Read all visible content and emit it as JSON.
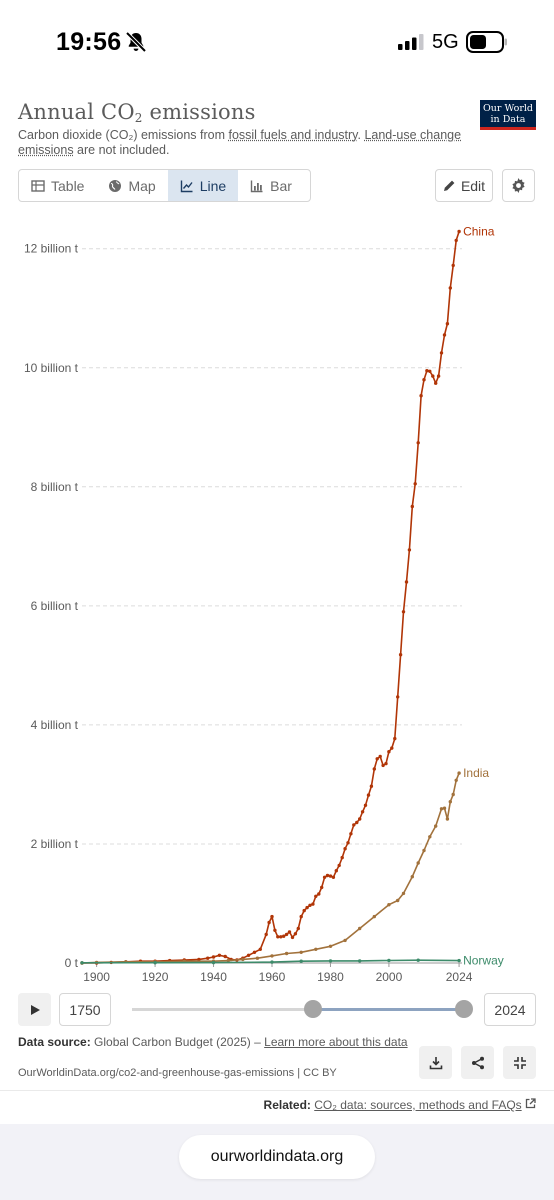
{
  "status": {
    "time": "19:56",
    "network": "5G"
  },
  "header": {
    "title_prefix": "Annual CO",
    "title_sub": "2",
    "title_suffix": " emissions",
    "logo_line1": "Our World",
    "logo_line2": "in Data",
    "subtitle_a": "Carbon dioxide (CO₂) emissions from ",
    "subtitle_link1": "fossil fuels and industry",
    "subtitle_b": ". ",
    "subtitle_link2": "Land-use change emissions",
    "subtitle_c": " are not included."
  },
  "tabs": [
    {
      "label": "Table",
      "icon": "table-icon"
    },
    {
      "label": "Map",
      "icon": "globe-icon"
    },
    {
      "label": "Line",
      "icon": "line-chart-icon",
      "active": true
    },
    {
      "label": "Bar",
      "icon": "bar-chart-icon"
    }
  ],
  "toolbar": {
    "edit_label": "Edit"
  },
  "timeline": {
    "start_year": "1750",
    "end_year": "2024"
  },
  "footer": {
    "source_label": "Data source:",
    "source_text": " Global Carbon Budget (2025) – ",
    "learn_more": "Learn more about this data",
    "url": "OurWorldinData.org/co2-and-greenhouse-gas-emissions | CC BY",
    "related_label": "Related:",
    "related_link": "CO₂ data: sources, methods and FAQs"
  },
  "browser": {
    "url": "ourworldindata.org"
  },
  "colors": {
    "China": "#b13507",
    "India": "#a2723c",
    "Norway": "#3d8b6a",
    "brand": "#002147"
  },
  "chart_data": {
    "type": "line",
    "title": "Annual CO₂ emissions",
    "x_ticks": [
      "1900",
      "1920",
      "1940",
      "1960",
      "1980",
      "2000",
      "2024"
    ],
    "y_ticks": [
      "0 t",
      "2 billion t",
      "4 billion t",
      "6 billion t",
      "8 billion t",
      "10 billion t",
      "12 billion t"
    ],
    "x_range": [
      1895,
      2025
    ],
    "ylim": [
      0,
      12.6
    ],
    "y_unit": "billion t",
    "grid": true,
    "series": [
      {
        "name": "China",
        "points": [
          [
            1895,
            0.0
          ],
          [
            1900,
            0.0
          ],
          [
            1905,
            0.01
          ],
          [
            1910,
            0.02
          ],
          [
            1915,
            0.03
          ],
          [
            1920,
            0.03
          ],
          [
            1925,
            0.04
          ],
          [
            1930,
            0.05
          ],
          [
            1935,
            0.06
          ],
          [
            1938,
            0.08
          ],
          [
            1940,
            0.1
          ],
          [
            1942,
            0.13
          ],
          [
            1944,
            0.11
          ],
          [
            1946,
            0.06
          ],
          [
            1948,
            0.05
          ],
          [
            1950,
            0.08
          ],
          [
            1952,
            0.13
          ],
          [
            1954,
            0.18
          ],
          [
            1956,
            0.23
          ],
          [
            1958,
            0.48
          ],
          [
            1959,
            0.68
          ],
          [
            1960,
            0.78
          ],
          [
            1961,
            0.55
          ],
          [
            1962,
            0.44
          ],
          [
            1963,
            0.44
          ],
          [
            1964,
            0.45
          ],
          [
            1965,
            0.48
          ],
          [
            1966,
            0.52
          ],
          [
            1967,
            0.43
          ],
          [
            1968,
            0.49
          ],
          [
            1969,
            0.58
          ],
          [
            1970,
            0.78
          ],
          [
            1971,
            0.88
          ],
          [
            1972,
            0.93
          ],
          [
            1973,
            0.97
          ],
          [
            1974,
            0.99
          ],
          [
            1975,
            1.12
          ],
          [
            1976,
            1.16
          ],
          [
            1977,
            1.27
          ],
          [
            1978,
            1.44
          ],
          [
            1979,
            1.47
          ],
          [
            1980,
            1.46
          ],
          [
            1981,
            1.44
          ],
          [
            1982,
            1.55
          ],
          [
            1983,
            1.64
          ],
          [
            1984,
            1.77
          ],
          [
            1985,
            1.92
          ],
          [
            1986,
            2.02
          ],
          [
            1987,
            2.17
          ],
          [
            1988,
            2.32
          ],
          [
            1989,
            2.36
          ],
          [
            1990,
            2.42
          ],
          [
            1991,
            2.54
          ],
          [
            1992,
            2.65
          ],
          [
            1993,
            2.82
          ],
          [
            1994,
            2.97
          ],
          [
            1995,
            3.26
          ],
          [
            1996,
            3.43
          ],
          [
            1997,
            3.47
          ],
          [
            1998,
            3.32
          ],
          [
            1999,
            3.35
          ],
          [
            2000,
            3.55
          ],
          [
            2001,
            3.61
          ],
          [
            2002,
            3.77
          ],
          [
            2003,
            4.47
          ],
          [
            2004,
            5.18
          ],
          [
            2005,
            5.9
          ],
          [
            2006,
            6.4
          ],
          [
            2007,
            6.94
          ],
          [
            2008,
            7.67
          ],
          [
            2009,
            8.05
          ],
          [
            2010,
            8.74
          ],
          [
            2011,
            9.53
          ],
          [
            2012,
            9.8
          ],
          [
            2013,
            9.95
          ],
          [
            2014,
            9.94
          ],
          [
            2015,
            9.86
          ],
          [
            2016,
            9.74
          ],
          [
            2017,
            9.86
          ],
          [
            2018,
            10.25
          ],
          [
            2019,
            10.55
          ],
          [
            2020,
            10.74
          ],
          [
            2021,
            11.34
          ],
          [
            2022,
            11.72
          ],
          [
            2023,
            12.14
          ],
          [
            2024,
            12.29
          ]
        ]
      },
      {
        "name": "India",
        "points": [
          [
            1895,
            0.0
          ],
          [
            1900,
            0.01
          ],
          [
            1910,
            0.02
          ],
          [
            1920,
            0.02
          ],
          [
            1930,
            0.03
          ],
          [
            1940,
            0.03
          ],
          [
            1945,
            0.04
          ],
          [
            1950,
            0.06
          ],
          [
            1955,
            0.08
          ],
          [
            1960,
            0.12
          ],
          [
            1965,
            0.16
          ],
          [
            1970,
            0.18
          ],
          [
            1975,
            0.23
          ],
          [
            1980,
            0.28
          ],
          [
            1985,
            0.38
          ],
          [
            1990,
            0.58
          ],
          [
            1995,
            0.78
          ],
          [
            2000,
            0.98
          ],
          [
            2003,
            1.05
          ],
          [
            2005,
            1.17
          ],
          [
            2008,
            1.45
          ],
          [
            2010,
            1.68
          ],
          [
            2012,
            1.89
          ],
          [
            2014,
            2.12
          ],
          [
            2016,
            2.3
          ],
          [
            2018,
            2.59
          ],
          [
            2019,
            2.6
          ],
          [
            2020,
            2.42
          ],
          [
            2021,
            2.71
          ],
          [
            2022,
            2.83
          ],
          [
            2023,
            3.07
          ],
          [
            2024,
            3.19
          ]
        ]
      },
      {
        "name": "Norway",
        "points": [
          [
            1895,
            0.003
          ],
          [
            1920,
            0.005
          ],
          [
            1940,
            0.006
          ],
          [
            1960,
            0.015
          ],
          [
            1970,
            0.03
          ],
          [
            1980,
            0.035
          ],
          [
            1990,
            0.036
          ],
          [
            2000,
            0.042
          ],
          [
            2010,
            0.047
          ],
          [
            2024,
            0.04
          ]
        ]
      }
    ]
  }
}
